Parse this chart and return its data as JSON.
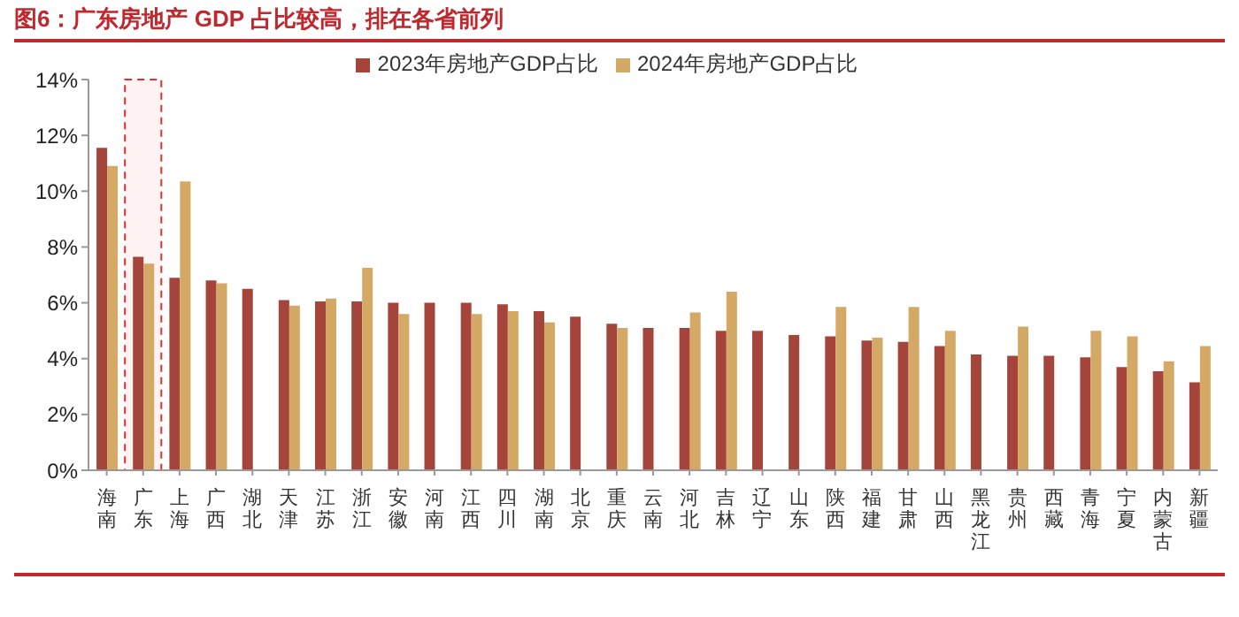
{
  "chart_data": {
    "type": "bar",
    "title": "图6：广东房地产 GDP 占比较高，排在各省前列",
    "categories": [
      "海南",
      "广东",
      "上海",
      "广西",
      "湖北",
      "天津",
      "江苏",
      "浙江",
      "安徽",
      "河南",
      "江西",
      "四川",
      "湖南",
      "北京",
      "重庆",
      "云南",
      "河北",
      "吉林",
      "辽宁",
      "山东",
      "陕西",
      "福建",
      "甘肃",
      "山西",
      "黑龙江",
      "贵州",
      "西藏",
      "青海",
      "宁夏",
      "内蒙古",
      "新疆"
    ],
    "series": [
      {
        "name": "2023年房地产GDP占比",
        "color": "#a5443a",
        "values": [
          11.55,
          7.65,
          6.9,
          6.8,
          6.5,
          6.1,
          6.05,
          6.05,
          6.0,
          6.0,
          6.0,
          5.95,
          5.7,
          5.5,
          5.25,
          5.1,
          5.1,
          5.0,
          5.0,
          4.85,
          4.8,
          4.65,
          4.6,
          4.45,
          4.15,
          4.1,
          4.1,
          4.05,
          3.7,
          3.55,
          3.15
        ]
      },
      {
        "name": "2024年房地产GDP占比",
        "color": "#d4a865",
        "values": [
          10.9,
          7.4,
          10.35,
          6.7,
          null,
          5.9,
          6.15,
          7.25,
          5.6,
          null,
          5.6,
          5.7,
          5.3,
          null,
          5.1,
          null,
          5.65,
          6.4,
          null,
          null,
          5.85,
          4.75,
          5.85,
          5.0,
          null,
          5.15,
          null,
          5.0,
          4.8,
          3.9,
          4.45
        ]
      }
    ],
    "ylim": [
      0,
      14
    ],
    "yticks": [
      {
        "value": 0,
        "label": "0%"
      },
      {
        "value": 2,
        "label": "2%"
      },
      {
        "value": 4,
        "label": "4%"
      },
      {
        "value": 6,
        "label": "6%"
      },
      {
        "value": 8,
        "label": "8%"
      },
      {
        "value": 10,
        "label": "10%"
      },
      {
        "value": 12,
        "label": "12%"
      },
      {
        "value": 14,
        "label": "14%"
      }
    ],
    "bands": [
      {
        "axis": "x",
        "from": "广东",
        "to": "广东",
        "color": "#e03030"
      }
    ],
    "grid": false,
    "legend": "top"
  }
}
